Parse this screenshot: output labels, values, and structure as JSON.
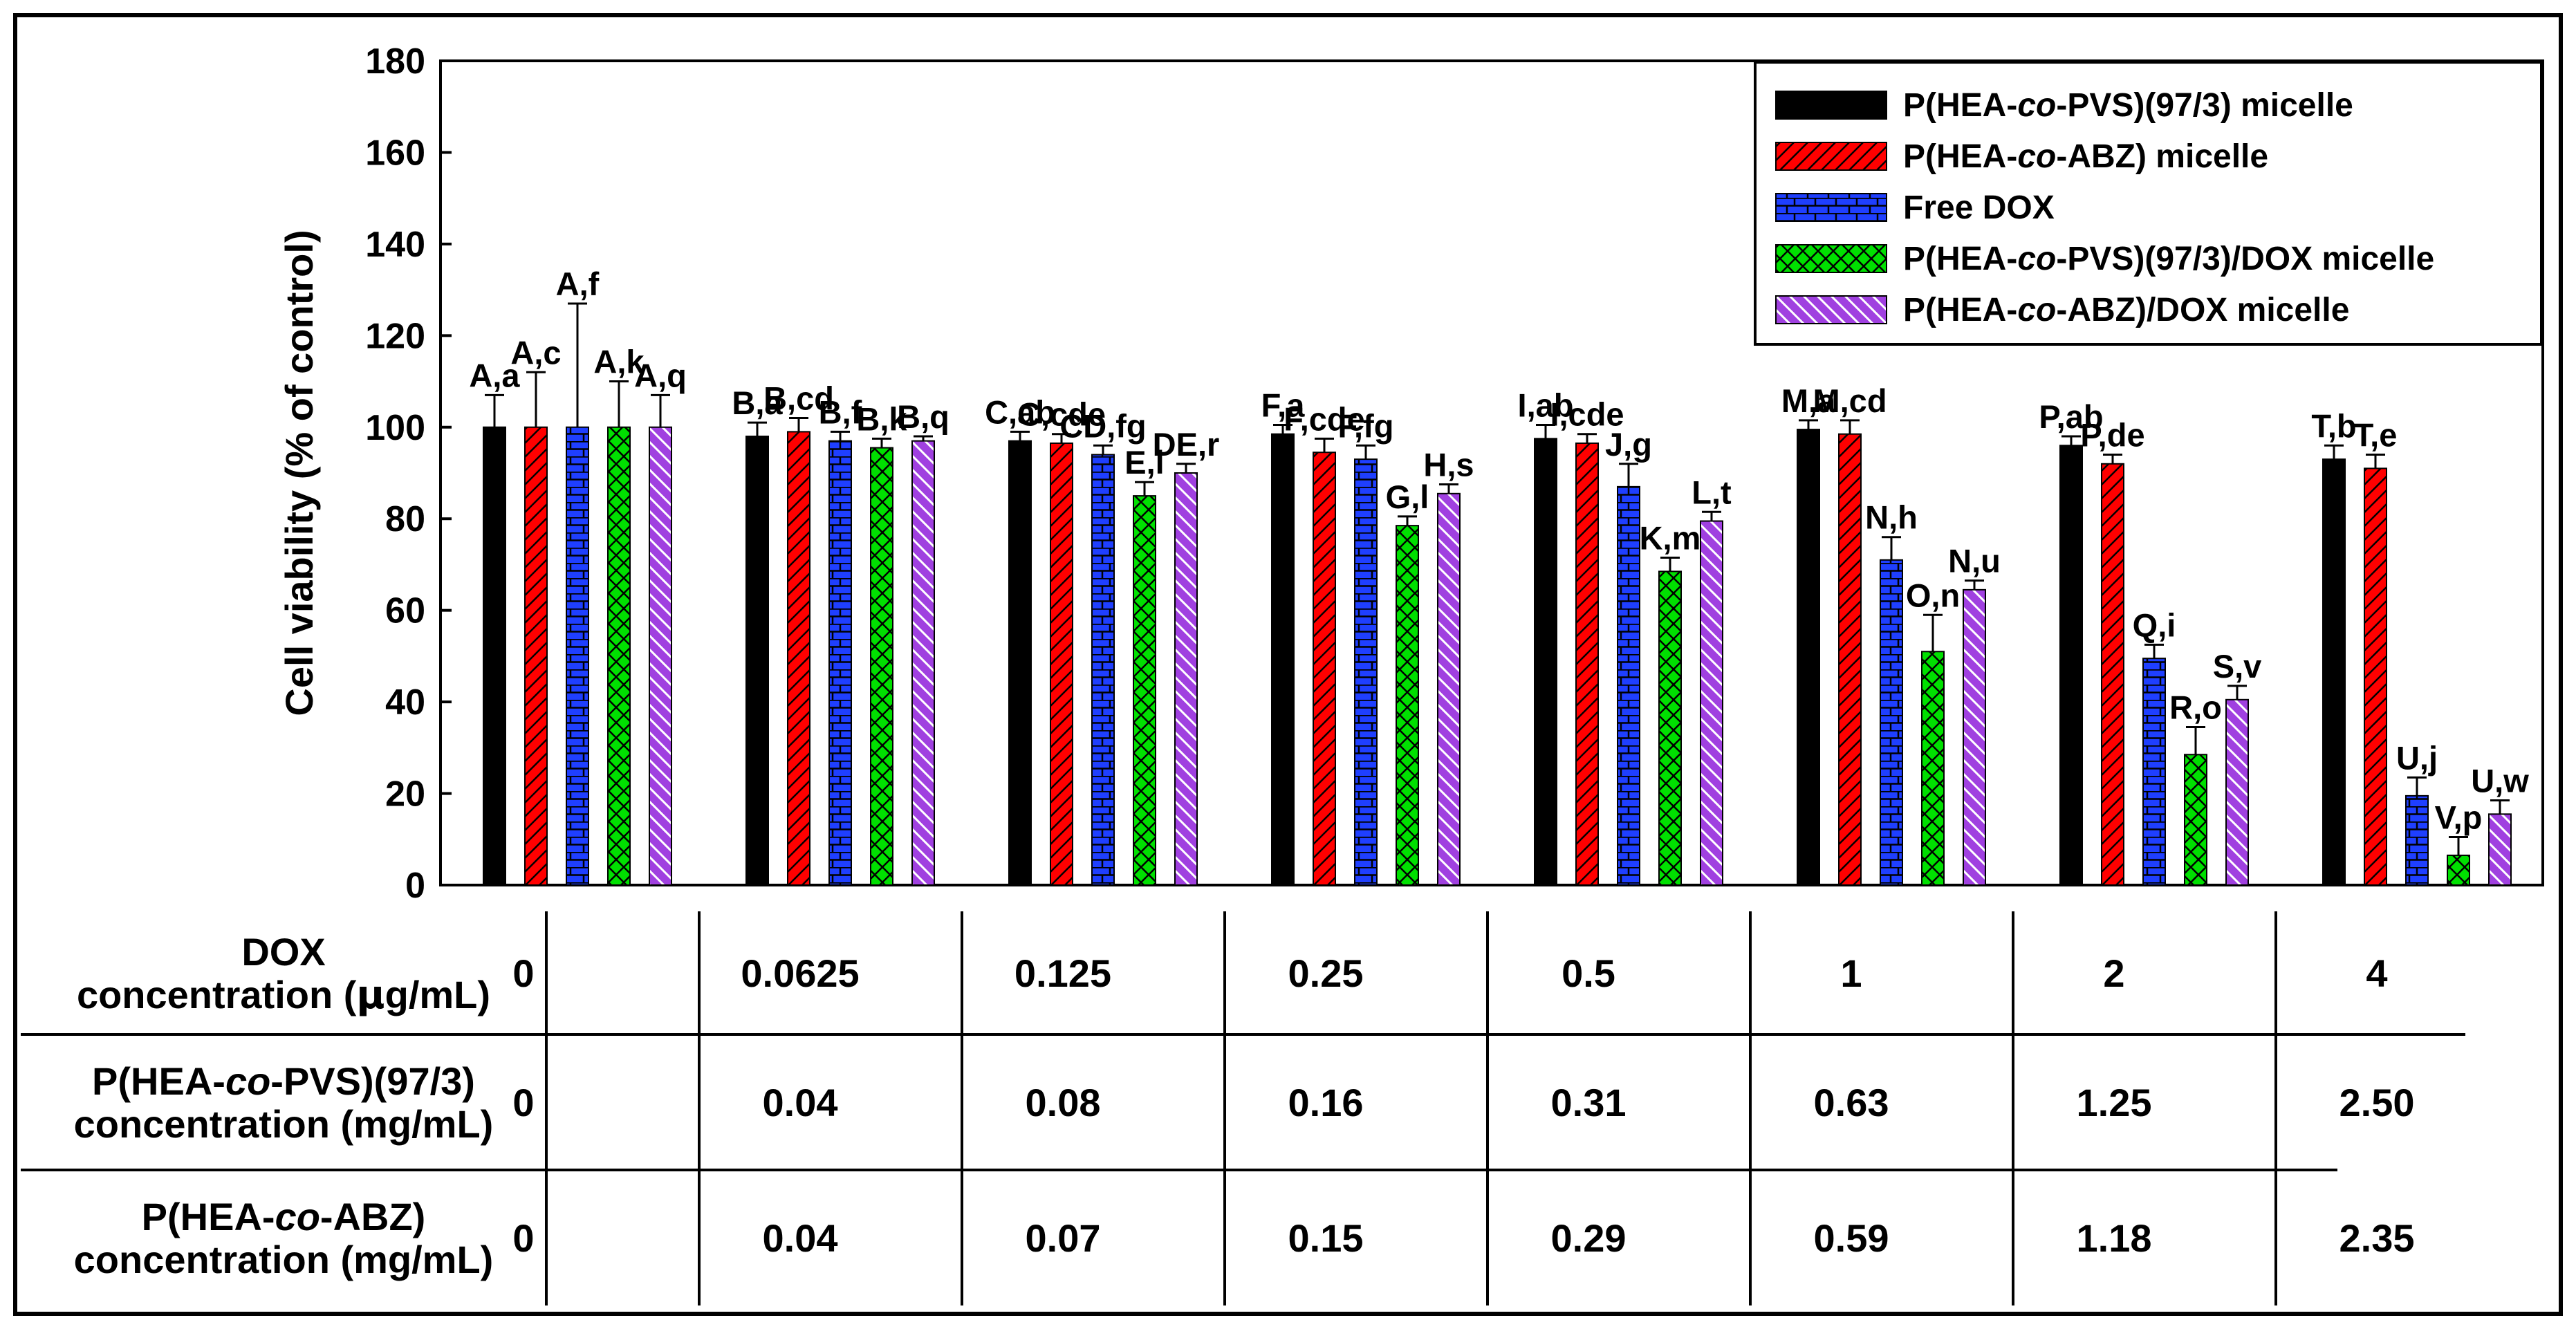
{
  "chart_data": {
    "type": "bar",
    "ylabel": "Cell viability (% of control)",
    "ylim": [
      0,
      180
    ],
    "yticks": [
      0,
      20,
      40,
      60,
      80,
      100,
      120,
      140,
      160,
      180
    ],
    "grid": false,
    "legend_position": "top-right",
    "legend": [
      {
        "pre": "P(HEA-",
        "ital": "co",
        "post": "-PVS)(97/3) micelle"
      },
      {
        "pre": "P(HEA-",
        "ital": "co",
        "post": "-ABZ) micelle"
      },
      {
        "pre": "Free DOX",
        "ital": "",
        "post": ""
      },
      {
        "pre": "P(HEA-",
        "ital": "co",
        "post": "-PVS)(97/3)/DOX micelle"
      },
      {
        "pre": "P(HEA-",
        "ital": "co",
        "post": "-ABZ)/DOX micelle"
      }
    ],
    "series": [
      {
        "color": "#000000",
        "pattern": "solid",
        "values": [
          100,
          98,
          97,
          98.5,
          97.5,
          99.5,
          96,
          93
        ],
        "errors": [
          7,
          3,
          2,
          2,
          3,
          2,
          2,
          3
        ],
        "labels": [
          "A,a",
          "B,a",
          "C,ab",
          "F,a",
          "I,ab",
          "M,a",
          "P,ab",
          "T,b"
        ]
      },
      {
        "color": "#ff0000",
        "pattern": "diagonal",
        "values": [
          100,
          99,
          96.5,
          94.5,
          96.5,
          98.5,
          92,
          91
        ],
        "errors": [
          12,
          3,
          2,
          3,
          2,
          3,
          2,
          3
        ],
        "labels": [
          "A,c",
          "B,cd",
          "C,cde",
          "F,cde",
          "I,cde",
          "M,cd",
          "P,de",
          "T,e"
        ]
      },
      {
        "color": "#1f3fff",
        "pattern": "brick",
        "values": [
          100,
          97,
          94,
          93,
          87,
          71,
          49.5,
          19.5
        ],
        "errors": [
          27,
          2,
          2,
          3,
          5,
          5,
          3,
          4
        ],
        "labels": [
          "A,f",
          "B,f",
          "CD,fg",
          "F,fg",
          "J,g",
          "N,h",
          "Q,i",
          "U,j"
        ]
      },
      {
        "color": "#00e000",
        "pattern": "crosshatch",
        "values": [
          100,
          95.5,
          85,
          78.5,
          68.5,
          51,
          28.5,
          6.5
        ],
        "errors": [
          10,
          2,
          3,
          2,
          3,
          8,
          6,
          4
        ],
        "labels": [
          "A,k",
          "B,k",
          "E,l",
          "G,l",
          "K,m",
          "O,n",
          "R,o",
          "V,p"
        ]
      },
      {
        "color": "#a040e0",
        "pattern": "hatch-light",
        "values": [
          100,
          97,
          90,
          85.5,
          79.5,
          64.5,
          40.5,
          15.5
        ],
        "errors": [
          7,
          1,
          2,
          2,
          2,
          2,
          3,
          3
        ],
        "labels": [
          "A,q",
          "B,q",
          "DE,r",
          "H,s",
          "L,t",
          "N,u",
          "S,v",
          "U,w"
        ]
      }
    ]
  },
  "table": {
    "rows": [
      {
        "label_lines": [
          [
            {
              "t": "DOX"
            }
          ],
          [
            {
              "t": "concentration ("
            },
            {
              "t": "μ",
              "sym": true
            },
            {
              "t": "g/mL)"
            }
          ]
        ],
        "values": [
          "0",
          "0.0625",
          "0.125",
          "0.25",
          "0.5",
          "1",
          "2",
          "4"
        ]
      },
      {
        "label_lines": [
          [
            {
              "t": "P(HEA-"
            },
            {
              "t": "co",
              "it": true
            },
            {
              "t": "-PVS)(97/3)"
            }
          ],
          [
            {
              "t": "concentration (mg/mL)"
            }
          ]
        ],
        "values": [
          "0",
          "0.04",
          "0.08",
          "0.16",
          "0.31",
          "0.63",
          "1.25",
          "2.50"
        ]
      },
      {
        "label_lines": [
          [
            {
              "t": "P(HEA-"
            },
            {
              "t": "co",
              "it": true
            },
            {
              "t": "-ABZ)"
            }
          ],
          [
            {
              "t": "concentration (mg/mL)"
            }
          ]
        ],
        "values": [
          "0",
          "0.04",
          "0.07",
          "0.15",
          "0.29",
          "0.59",
          "1.18",
          "2.35"
        ]
      }
    ]
  }
}
